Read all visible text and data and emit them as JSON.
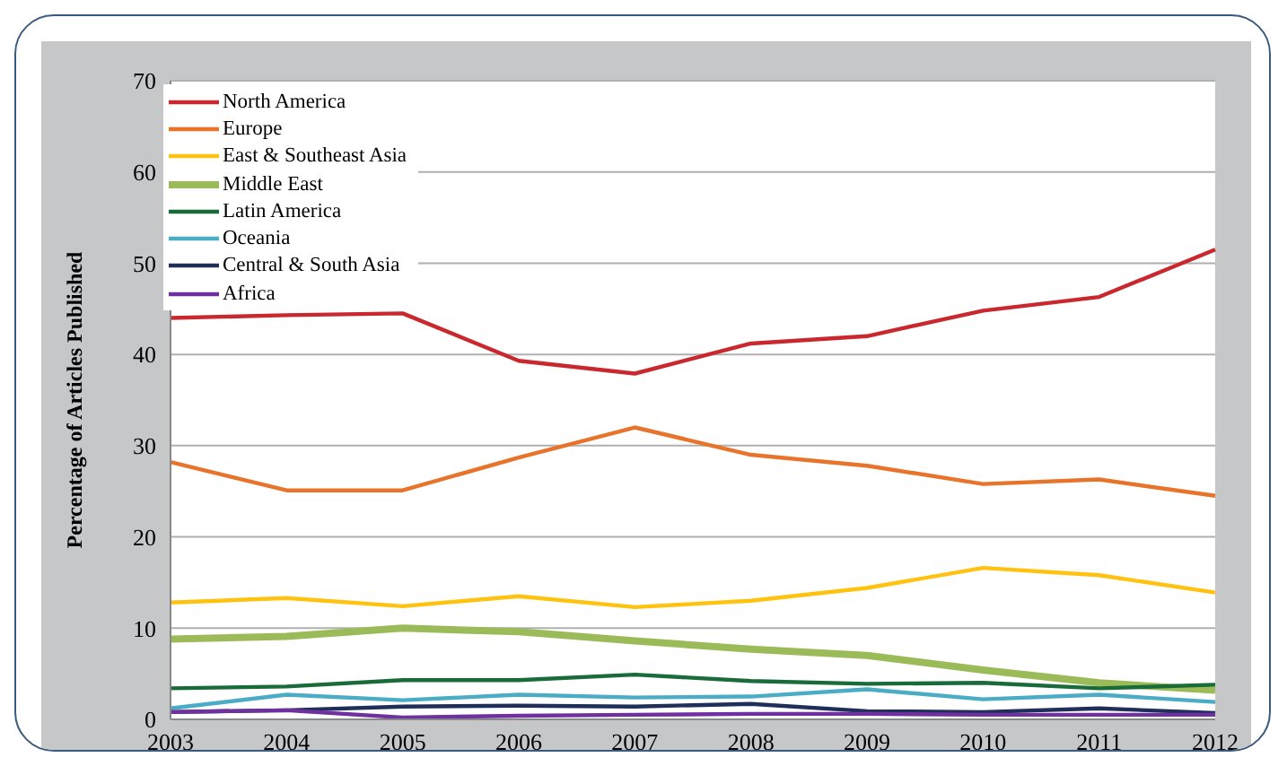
{
  "chart_data": {
    "type": "line",
    "ylabel": "Percentage of Articles Published",
    "categories": [
      "2003",
      "2004",
      "2005",
      "2006",
      "2007",
      "2008",
      "2009",
      "2010",
      "2011",
      "2012"
    ],
    "series": [
      {
        "name": "North America",
        "color": "#c8282e",
        "values": [
          44,
          44.3,
          44.5,
          39.3,
          37.9,
          41.2,
          42,
          44.8,
          46.3,
          51.5
        ]
      },
      {
        "name": "Europe",
        "color": "#e8732a",
        "values": [
          28.2,
          25.1,
          25.1,
          28.7,
          32,
          29,
          27.8,
          25.8,
          26.3,
          24.5
        ]
      },
      {
        "name": "East & Southeast Asia",
        "color": "#ffc20e",
        "values": [
          12.8,
          13.3,
          12.4,
          13.5,
          12.3,
          13,
          14.4,
          16.6,
          15.8,
          13.9
        ]
      },
      {
        "name": "Middle East",
        "color": "#9bbb59",
        "values": [
          8.8,
          9.1,
          10,
          9.6,
          8.6,
          7.7,
          7,
          5.4,
          4,
          3.2
        ]
      },
      {
        "name": "Latin America",
        "color": "#1a6b3a",
        "values": [
          3.4,
          3.6,
          4.3,
          4.3,
          4.9,
          4.2,
          3.9,
          4,
          3.4,
          3.8
        ]
      },
      {
        "name": "Oceania",
        "color": "#4bacc6",
        "values": [
          1.2,
          2.7,
          2.1,
          2.7,
          2.4,
          2.5,
          3.3,
          2.2,
          2.7,
          1.9
        ]
      },
      {
        "name": "Central & South Asia",
        "color": "#1f2f5a",
        "values": [
          0.8,
          1,
          1.4,
          1.5,
          1.4,
          1.7,
          0.9,
          0.8,
          1.2,
          0.7
        ]
      },
      {
        "name": "Africa",
        "color": "#7030a0",
        "values": [
          0.8,
          1,
          0.2,
          0.4,
          0.5,
          0.6,
          0.6,
          0.5,
          0.5,
          0.5
        ]
      }
    ],
    "ylim": [
      0,
      70
    ],
    "yticks": [
      0,
      10,
      20,
      30,
      40,
      50,
      60,
      70
    ],
    "grid": "y",
    "legend": "top left",
    "marker": "none",
    "line_style": "solid"
  }
}
